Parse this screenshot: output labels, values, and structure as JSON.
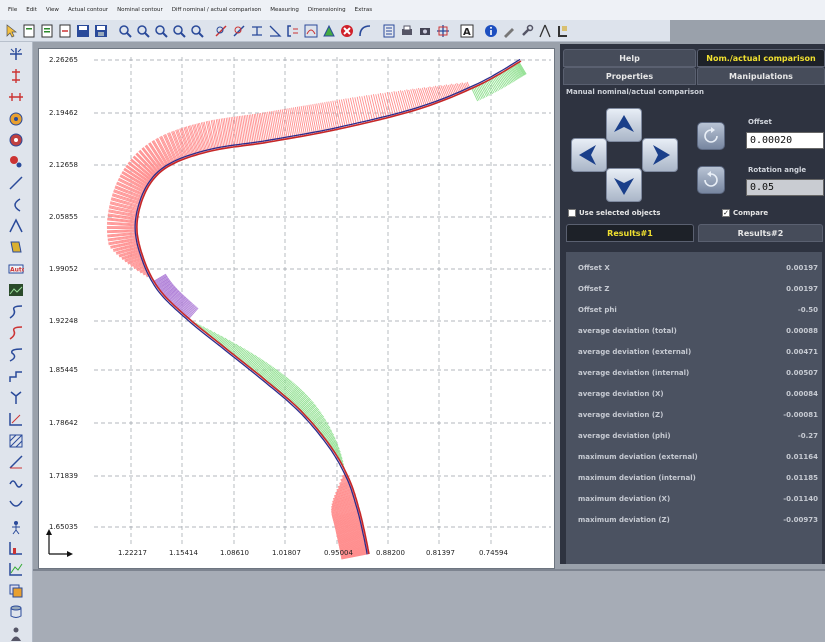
{
  "menu": [
    "File",
    "Edit",
    "View",
    "Actual contour",
    "Nominal contour",
    "Diff nominal / actual comparison",
    "Measuring",
    "Dimensioning",
    "Extras"
  ],
  "graph": {
    "y_ticks": [
      "2.26265",
      "2.19462",
      "2.12658",
      "2.05855",
      "1.99052",
      "1.92248",
      "1.85445",
      "1.78642",
      "1.71839",
      "1.65035"
    ],
    "x_ticks": [
      "1.22217",
      "1.15414",
      "1.08610",
      "1.01807",
      "0.95004",
      "0.88200",
      "0.81397",
      "0.74594"
    ],
    "colors": {
      "nominal": "#c62828",
      "actual": "#2c2c8c",
      "positive_deviation": "#ff8f8f",
      "negative_deviation": "#90e090",
      "inner_deviation": "#b080d8"
    }
  },
  "panel": {
    "tabs": {
      "help": "Help",
      "nom_actual": "Nom./actual comparison",
      "properties": "Properties",
      "manipulations": "Manipulations"
    },
    "section_title": "Manual nominal/actual comparison",
    "offset_label": "Offset",
    "offset_value": "0.00020",
    "rotation_label": "Rotation angle",
    "rotation_value": "0.05",
    "use_selected_label": "Use selected objects",
    "compare_label": "Compare",
    "results_tabs": {
      "r1": "Results#1",
      "r2": "Results#2"
    },
    "results": [
      {
        "label": "Offset X",
        "value": "0.00197"
      },
      {
        "label": "Offset Z",
        "value": "0.00197"
      },
      {
        "label": "Offset phi",
        "value": "-0.50"
      },
      {
        "label": "average deviation (total)",
        "value": "0.00088"
      },
      {
        "label": "average deviation (external)",
        "value": "0.00471"
      },
      {
        "label": "average deviation (internal)",
        "value": "0.00507"
      },
      {
        "label": "average deviation (X)",
        "value": "0.00084"
      },
      {
        "label": "average deviation (Z)",
        "value": "-0.00081"
      },
      {
        "label": "average deviation (phi)",
        "value": "-0.27"
      },
      {
        "label": "maximum deviation (external)",
        "value": "0.01164"
      },
      {
        "label": "maximum deviation (internal)",
        "value": "0.01185"
      },
      {
        "label": "maximum deviation (X)",
        "value": "-0.01140"
      },
      {
        "label": "maximum deviation (Z)",
        "value": "-0.00973"
      }
    ]
  }
}
